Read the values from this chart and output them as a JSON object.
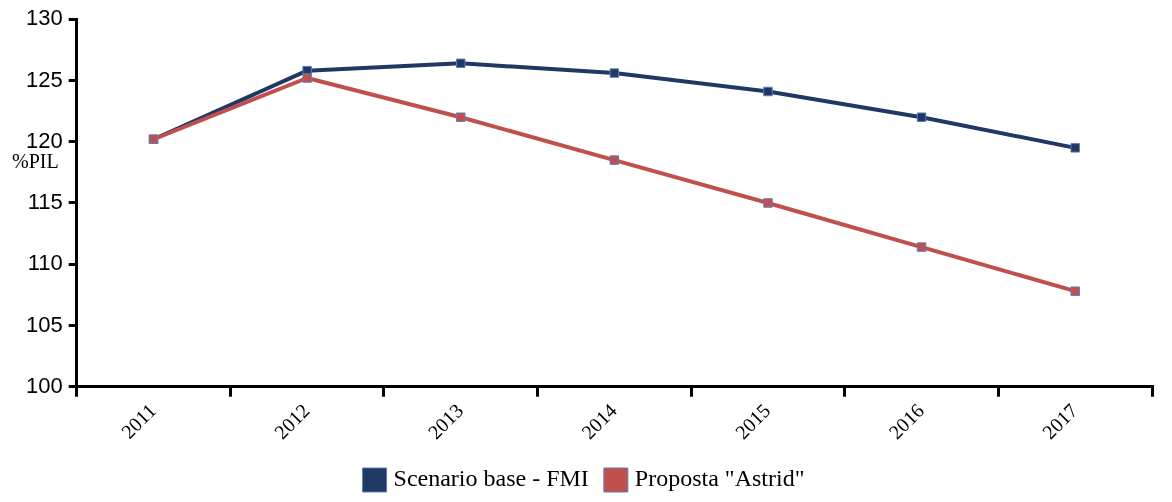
{
  "chart_data": {
    "type": "line",
    "ylabel": "%PIL",
    "categories": [
      "2011",
      "2012",
      "2013",
      "2014",
      "2015",
      "2016",
      "2017"
    ],
    "series": [
      {
        "name": "Scenario base - FMI",
        "color": "#1f3864",
        "values": [
          120.2,
          125.8,
          126.4,
          125.6,
          124.1,
          122.0,
          119.5
        ]
      },
      {
        "name": "Proposta \"Astrid\"",
        "color": "#c0504d",
        "values": [
          120.2,
          125.2,
          122.0,
          118.5,
          115.0,
          111.4,
          107.8
        ]
      }
    ],
    "ylim": [
      100,
      130
    ],
    "yticks": [
      100,
      105,
      110,
      115,
      120,
      125,
      130
    ],
    "grid": false,
    "legend": "bottom",
    "marker": "square",
    "line_style": "solid"
  }
}
